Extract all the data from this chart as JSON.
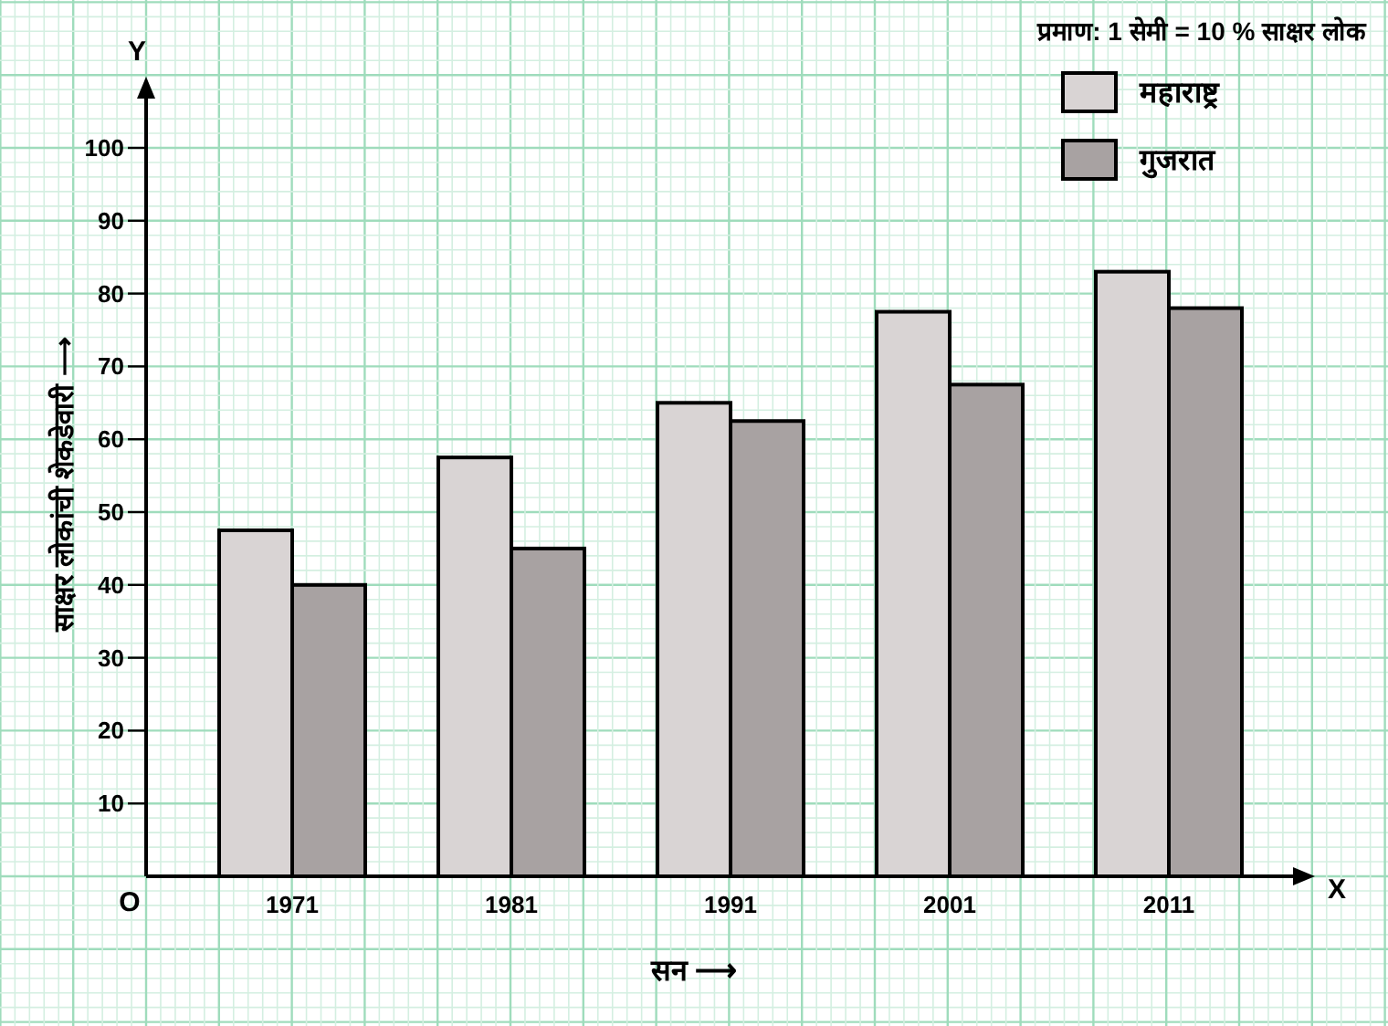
{
  "chart_data": {
    "type": "bar",
    "title": "प्रमाण: 1 सेमी = 10 % साक्षर लोक",
    "xlabel": "सन ⟶",
    "ylabel": "साक्षर लोकांची शेकडेवारी ⟶",
    "categories": [
      "1971",
      "1981",
      "1991",
      "2001",
      "2011"
    ],
    "series": [
      {
        "name": "महाराष्ट्र",
        "color": "#d9d4d4",
        "values": [
          47.5,
          57.5,
          65,
          77.5,
          83
        ]
      },
      {
        "name": "गुजरात",
        "color": "#a8a2a2",
        "values": [
          40,
          45,
          62.5,
          67.5,
          78
        ]
      }
    ],
    "ylim": [
      0,
      100
    ],
    "yticks": [
      10,
      20,
      30,
      40,
      50,
      60,
      70,
      80,
      90,
      100
    ],
    "annotations": [
      "Y",
      "X",
      "O"
    ],
    "grid": true,
    "legend": "top right"
  }
}
